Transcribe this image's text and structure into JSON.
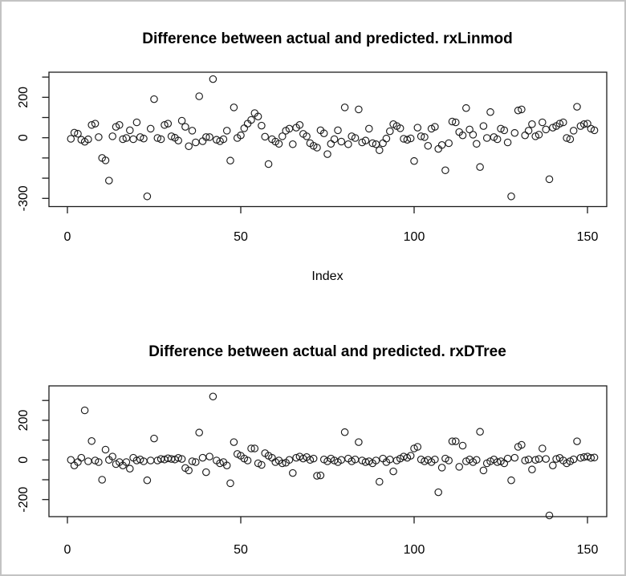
{
  "window": {
    "background": "#ffffff",
    "border_color": "#c3c3c3",
    "point_color": "#1c1c1c",
    "axis_color": "#1c1c1c"
  },
  "chart_data": [
    {
      "type": "scatter",
      "title": "Difference between actual and predicted. rxLinmod",
      "xlabel": "Index",
      "ylabel": "",
      "marker": "open-circle",
      "grid": false,
      "legend": "none",
      "xlim": [
        -5,
        156
      ],
      "ylim": [
        -330,
        310
      ],
      "x_ticks": [
        0,
        50,
        100,
        150
      ],
      "y_ticks": [
        300,
        200,
        100,
        0,
        -100,
        -200,
        -300
      ],
      "y_tick_labeled": [
        200,
        0,
        -300
      ],
      "x": "index 1..152",
      "values": [
        -5,
        25,
        20,
        -10,
        -20,
        -8,
        63,
        70,
        3,
        -100,
        -112,
        -212,
        7,
        54,
        63,
        -7,
        -1,
        37,
        -7,
        76,
        3,
        -4,
        -290,
        45,
        191,
        -1,
        -7,
        63,
        70,
        7,
        0,
        -14,
        84,
        54,
        -42,
        35,
        -23,
        205,
        -17,
        3,
        3,
        290,
        -10,
        -17,
        -7,
        35,
        -113,
        150,
        -1,
        12,
        47,
        70,
        88,
        122,
        105,
        60,
        5,
        -130,
        -7,
        -19,
        -30,
        7,
        35,
        45,
        -32,
        50,
        63,
        19,
        7,
        -27,
        -40,
        -49,
        37,
        22,
        -81,
        -30,
        -7,
        37,
        -19,
        150,
        -32,
        7,
        -1,
        140,
        -23,
        -14,
        45,
        -27,
        -32,
        -62,
        -27,
        -4,
        32,
        67,
        58,
        47,
        -5,
        -10,
        -3,
        -115,
        50,
        7,
        3,
        -40,
        45,
        54,
        -55,
        -36,
        -161,
        -27,
        80,
        76,
        28,
        12,
        147,
        41,
        15,
        -30,
        -145,
        58,
        -1,
        127,
        3,
        -7,
        45,
        37,
        -23,
        -290,
        24,
        135,
        140,
        12,
        35,
        67,
        7,
        15,
        76,
        41,
        -205,
        50,
        58,
        70,
        76,
        -1,
        -7,
        35,
        153,
        58,
        67,
        70,
        45,
        37
      ]
    },
    {
      "type": "scatter",
      "title": "Difference between actual and predicted. rxDTree",
      "xlabel": "",
      "ylabel": "",
      "marker": "open-circle",
      "grid": false,
      "legend": "none",
      "xlim": [
        -5,
        156
      ],
      "ylim": [
        -290,
        370
      ],
      "x_ticks": [
        0,
        50,
        100,
        150
      ],
      "y_ticks": [
        300,
        200,
        100,
        0,
        -100,
        -200
      ],
      "y_tick_labeled": [
        200,
        0,
        -200
      ],
      "x": "index 1..152",
      "values": [
        0,
        -28,
        -11,
        11,
        250,
        -7,
        95,
        -3,
        -11,
        -100,
        52,
        0,
        17,
        -21,
        -11,
        -28,
        -11,
        -44,
        11,
        -3,
        2,
        -7,
        -103,
        -3,
        108,
        -3,
        5,
        2,
        8,
        5,
        2,
        10,
        5,
        -41,
        -53,
        -7,
        -11,
        138,
        11,
        -62,
        17,
        320,
        -3,
        -17,
        -11,
        -28,
        -118,
        90,
        30,
        21,
        7,
        -3,
        58,
        58,
        -17,
        -25,
        34,
        21,
        11,
        -11,
        -3,
        -17,
        -14,
        0,
        -66,
        11,
        17,
        7,
        14,
        0,
        7,
        -80,
        -78,
        2,
        -7,
        7,
        -3,
        -11,
        0,
        140,
        7,
        -7,
        2,
        90,
        -3,
        -11,
        -7,
        -17,
        -3,
        -110,
        7,
        -11,
        2,
        -58,
        -3,
        7,
        17,
        11,
        21,
        58,
        66,
        2,
        -7,
        0,
        -11,
        2,
        -163,
        -39,
        7,
        -3,
        94,
        94,
        -35,
        72,
        -7,
        2,
        -11,
        0,
        142,
        -53,
        -17,
        -7,
        2,
        -11,
        -7,
        -17,
        7,
        -103,
        11,
        66,
        76,
        -3,
        2,
        -48,
        0,
        5,
        58,
        5,
        -280,
        -28,
        5,
        10,
        -3,
        -17,
        -7,
        3,
        94,
        10,
        14,
        17,
        10,
        12
      ]
    }
  ]
}
